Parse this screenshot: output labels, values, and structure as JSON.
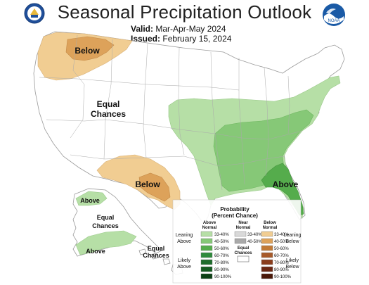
{
  "header": {
    "title": "Seasonal Precipitation Outlook",
    "valid_label": "Valid:",
    "valid_value": "Mar-Apr-May 2024",
    "issued_label": "Issued:",
    "issued_value": "February 15, 2024"
  },
  "logos": {
    "left": "doc-seal-icon",
    "right_text": "NOAA"
  },
  "map_labels": {
    "below_nw": "Below",
    "equal_chances": "Equal",
    "equal_chances_2": "Chances",
    "below_sw": "Below",
    "above_se": "Above",
    "alaska_above_1": "Above",
    "alaska_equal_1": "Equal",
    "alaska_equal_1b": "Chances",
    "alaska_above_2": "Above",
    "hawaii_equal": "Equal",
    "hawaii_equal_b": "Chances"
  },
  "legend": {
    "title": "Probability",
    "subtitle": "(Percent Chance)",
    "col_above": "Above",
    "col_above_b": "Normal",
    "col_near": "Near",
    "col_near_b": "Normal",
    "col_below": "Below",
    "col_below_b": "Normal",
    "leaning_above": "Leaning",
    "leaning_above_b": "Above",
    "leaning_below": "Leaning",
    "leaning_below_b": "Below",
    "likely_above": "Likely",
    "likely_above_b": "Above",
    "likely_below": "Likely",
    "likely_below_b": "Below",
    "equal_chances": "Equal",
    "equal_chances_b": "Chances",
    "rows": [
      {
        "label_above": "33-40%",
        "label_near": "33-40%",
        "label_below": "33-40%"
      },
      {
        "label_above": "40-50%",
        "label_near": "40-50%",
        "label_below": "40-50%"
      },
      {
        "label_above": "50-60%",
        "label_below": "50-60%"
      },
      {
        "label_above": "60-70%",
        "label_below": "60-70%"
      },
      {
        "label_above": "70-80%",
        "label_below": "70-80%"
      },
      {
        "label_above": "80-90%",
        "label_below": "80-90%"
      },
      {
        "label_above": "90-100%",
        "label_below": "90-100%"
      }
    ],
    "colors": {
      "above": [
        "#b6dfa6",
        "#86c877",
        "#55ac4c",
        "#2f8a3c",
        "#1e6c2c",
        "#145a20",
        "#0b3f14"
      ],
      "near": [
        "#d9d9d9",
        "#a9a9a9"
      ],
      "below": [
        "#f1cd92",
        "#dda25a",
        "#c27a36",
        "#a75a2a",
        "#8a3d1d",
        "#6b2713",
        "#4a1708"
      ]
    }
  }
}
